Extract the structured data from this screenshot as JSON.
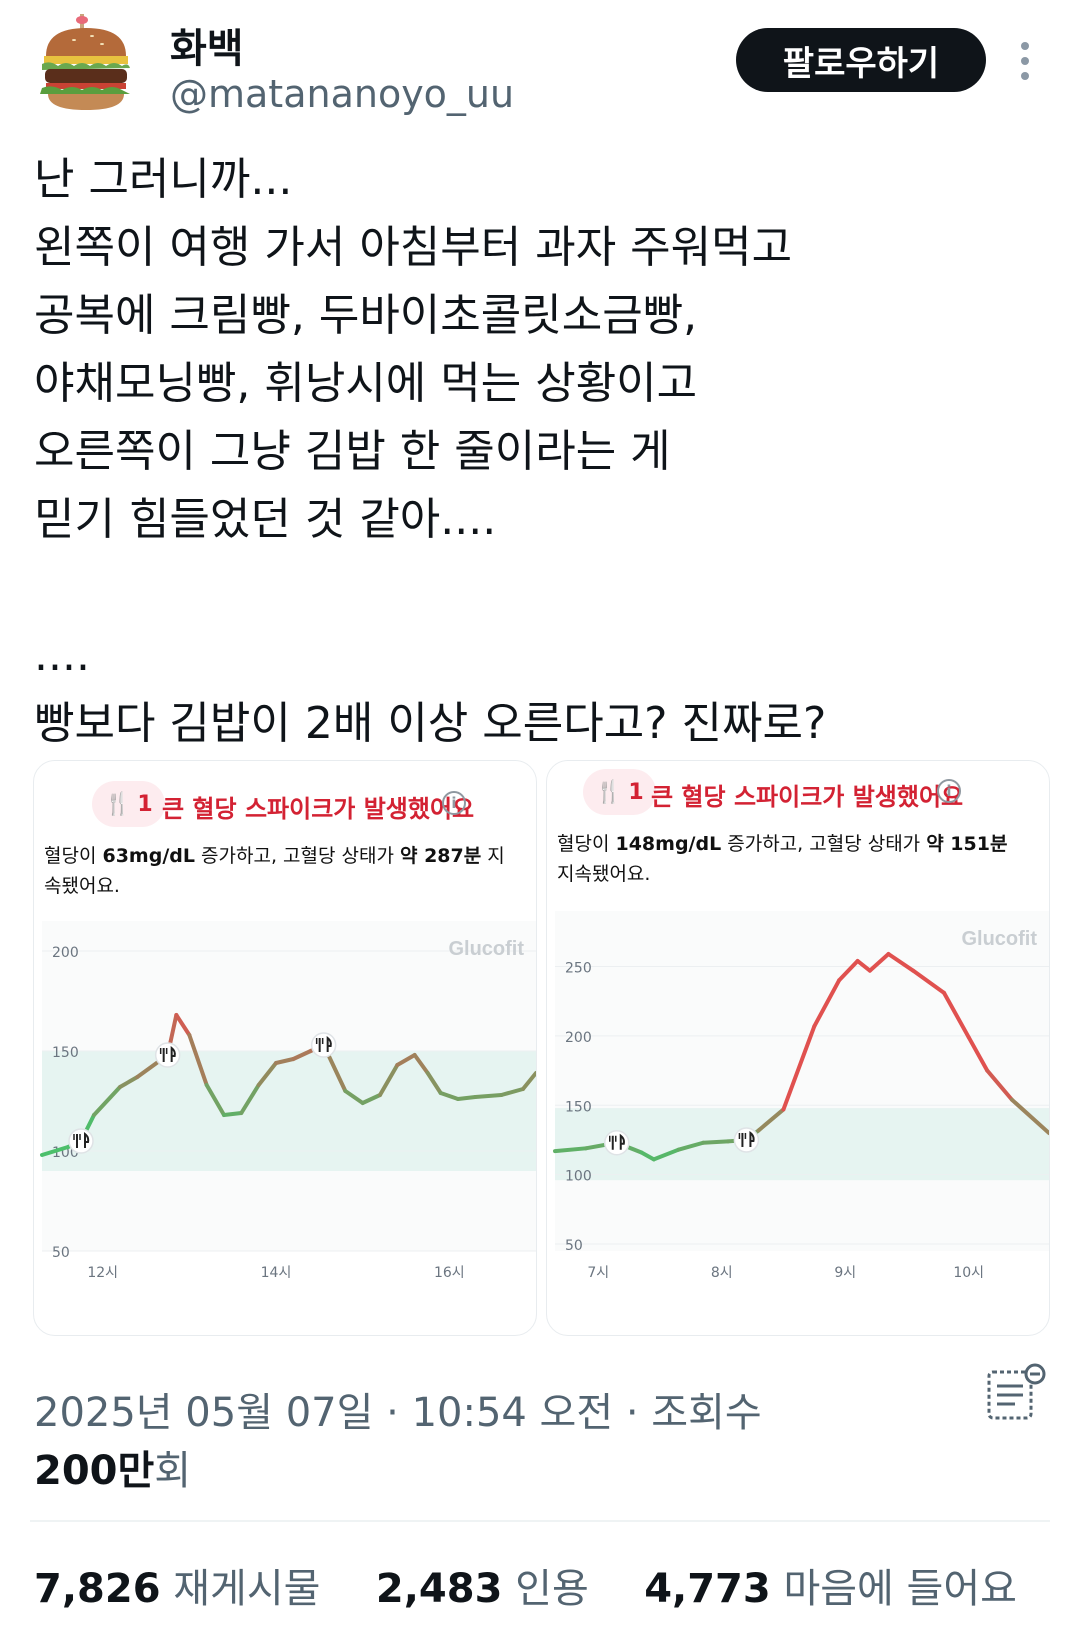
{
  "user": {
    "name": "화백",
    "handle": "@matananoyo_uu",
    "avatar_icon": "burger-avatar-icon"
  },
  "follow_label": "팔로우하기",
  "tweet_lines": [
    "난 그러니까...",
    "왼쪽이 여행 가서 아침부터 과자 주워먹고",
    "공복에 크림빵, 두바이초콜릿소금빵,",
    "야채모닝빵, 휘낭시에 먹는 상황이고",
    "오른쪽이 그냥 김밥 한 줄이라는 게",
    "믿기 힘들었던 것 같아....",
    "",
    "....",
    "빵보다 김밥이 2배 이상 오른다고? 진짜로?"
  ],
  "cards": [
    {
      "badge": "1",
      "title": "큰 혈당 스파이크가 발생했어요",
      "desc_pre": "혈당이 ",
      "desc_rise": "63mg/dL",
      "desc_mid": " 증가하고, 고혈당 상태가 ",
      "desc_dur": "약 287분",
      "desc_post": " 지속됐어요.",
      "brand": "Glucofit"
    },
    {
      "badge": "1",
      "title": "큰 혈당 스파이크가 발생했어요",
      "desc_pre": "혈당이 ",
      "desc_rise": "148mg/dL",
      "desc_mid": " 증가하고, 고혈당 상태가 ",
      "desc_dur": "약 151분",
      "desc_post": " 지속됐어요.",
      "brand": "Glucofit"
    }
  ],
  "chart_data": [
    {
      "type": "line",
      "yticks": [
        50,
        100,
        150,
        200
      ],
      "ylim": [
        50,
        215
      ],
      "xlim": [
        11.3,
        17.0
      ],
      "xticks": [
        {
          "x": 12,
          "label": "12시"
        },
        {
          "x": 14,
          "label": "14시"
        },
        {
          "x": 16,
          "label": "16시"
        }
      ],
      "target_range": [
        90,
        150
      ],
      "x": [
        11.3,
        11.6,
        11.75,
        11.9,
        12.2,
        12.4,
        12.75,
        12.85,
        13.0,
        13.2,
        13.4,
        13.6,
        13.8,
        14.0,
        14.2,
        14.4,
        14.55,
        14.8,
        15.0,
        15.2,
        15.4,
        15.6,
        15.75,
        15.9,
        16.1,
        16.3,
        16.6,
        16.85,
        17.0
      ],
      "y": [
        98,
        102,
        105,
        118,
        132,
        137,
        148,
        168,
        158,
        133,
        118,
        119,
        133,
        144,
        146,
        150,
        153,
        130,
        124,
        128,
        143,
        148,
        139,
        129,
        126,
        127,
        128,
        131,
        139
      ],
      "meal_markers": [
        11.75,
        12.75,
        14.55
      ]
    },
    {
      "type": "line",
      "yticks": [
        50,
        100,
        150,
        200,
        250
      ],
      "ylim": [
        45,
        290
      ],
      "xlim": [
        6.65,
        10.65
      ],
      "xticks": [
        {
          "x": 7,
          "label": "7시"
        },
        {
          "x": 8,
          "label": "8시"
        },
        {
          "x": 9,
          "label": "9시"
        },
        {
          "x": 10,
          "label": "10시"
        }
      ],
      "target_range": [
        96,
        148
      ],
      "x": [
        6.65,
        6.9,
        7.15,
        7.35,
        7.45,
        7.65,
        7.85,
        8.05,
        8.2,
        8.3,
        8.5,
        8.75,
        8.95,
        9.1,
        9.2,
        9.35,
        9.55,
        9.8,
        10.0,
        10.15,
        10.35,
        10.65
      ],
      "y": [
        117,
        119,
        123,
        116,
        111,
        118,
        123,
        124,
        125,
        132,
        147,
        207,
        240,
        254,
        247,
        259,
        247,
        231,
        199,
        175,
        154,
        130
      ],
      "meal_markers": [
        7.15,
        8.2
      ]
    }
  ],
  "meta": {
    "date": "2025년 05월 07일 · 10:54 오전 · 조회수",
    "views_num": "200만",
    "views_unit": "회"
  },
  "stats": [
    {
      "num": "7,826",
      "label": "재게시물"
    },
    {
      "num": "2,483",
      "label": "인용"
    },
    {
      "num": "4,773",
      "label": "마음에 들어요"
    }
  ],
  "colors": {
    "accent_red": "#d32233",
    "range_fill": "#e6f4f1",
    "grad_low": "#4cbf6b",
    "grad_high": "#e0514f"
  }
}
